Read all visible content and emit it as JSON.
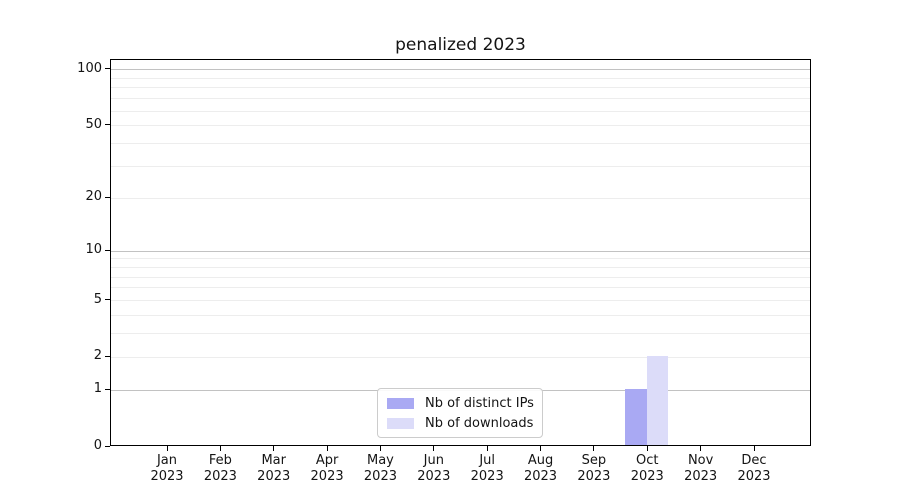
{
  "chart_data": {
    "type": "bar",
    "title": "penalized 2023",
    "categories": [
      {
        "month": "Jan",
        "year": "2023"
      },
      {
        "month": "Feb",
        "year": "2023"
      },
      {
        "month": "Mar",
        "year": "2023"
      },
      {
        "month": "Apr",
        "year": "2023"
      },
      {
        "month": "May",
        "year": "2023"
      },
      {
        "month": "Jun",
        "year": "2023"
      },
      {
        "month": "Jul",
        "year": "2023"
      },
      {
        "month": "Aug",
        "year": "2023"
      },
      {
        "month": "Sep",
        "year": "2023"
      },
      {
        "month": "Oct",
        "year": "2023"
      },
      {
        "month": "Nov",
        "year": "2023"
      },
      {
        "month": "Dec",
        "year": "2023"
      }
    ],
    "series": [
      {
        "name": "Nb of distinct IPs",
        "color": "#a9a9f3",
        "values": [
          0,
          0,
          0,
          0,
          0,
          0,
          0,
          0,
          0,
          1,
          0,
          0
        ]
      },
      {
        "name": "Nb of downloads",
        "color": "#dcdcf9",
        "values": [
          0,
          0,
          0,
          0,
          0,
          0,
          0,
          0,
          0,
          2,
          0,
          0
        ]
      }
    ],
    "xlabel": "",
    "ylabel": "",
    "y_scale": "log1p",
    "ylim": [
      0,
      113
    ],
    "y_ticks": [
      0,
      1,
      2,
      5,
      10,
      20,
      50,
      100
    ],
    "y_gridlines_major": [
      1,
      10,
      100
    ],
    "y_gridlines_minor": [
      2,
      3,
      4,
      5,
      6,
      7,
      8,
      9,
      20,
      30,
      40,
      50,
      60,
      70,
      80,
      90
    ],
    "grid": true,
    "legend_position": "lower center",
    "colors": {
      "grid_major": "#c2c2c2",
      "grid_minor": "#ededed",
      "spine": "#000000",
      "text": "#141414",
      "background": "#ffffff"
    }
  }
}
